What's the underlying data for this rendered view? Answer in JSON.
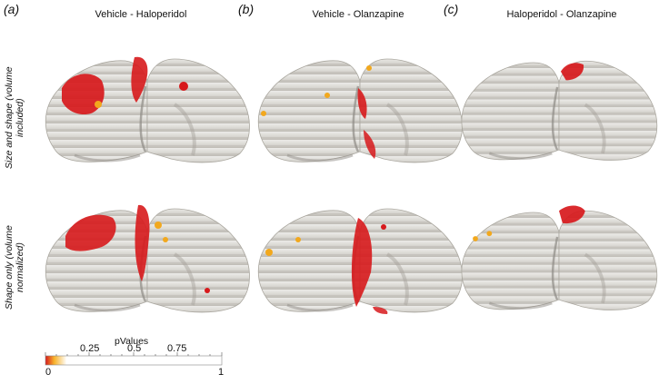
{
  "panels": [
    {
      "letter": "(a)",
      "title": "Vehicle - Haloperidol"
    },
    {
      "letter": "(b)",
      "title": "Vehicle - Olanzapine"
    },
    {
      "letter": "(c)",
      "title": "Haloperidol - Olanzapine"
    }
  ],
  "rows": [
    {
      "label": "Size and shape (volume included)"
    },
    {
      "label": "Shape only (volume normalized)"
    }
  ],
  "colorbar": {
    "title": "pValues",
    "min_label": "0",
    "max_label": "1",
    "ticks": [
      "0.25",
      "0.5",
      "0.75"
    ],
    "colors": {
      "low": "#d7191c",
      "mid": "#f7b32b",
      "high": "#ffffff"
    }
  },
  "colors": {
    "brain": "#dedcd8",
    "brain_shadow": "#9a9892",
    "significant": "#d7191c",
    "marginal": "#f2a81d"
  }
}
